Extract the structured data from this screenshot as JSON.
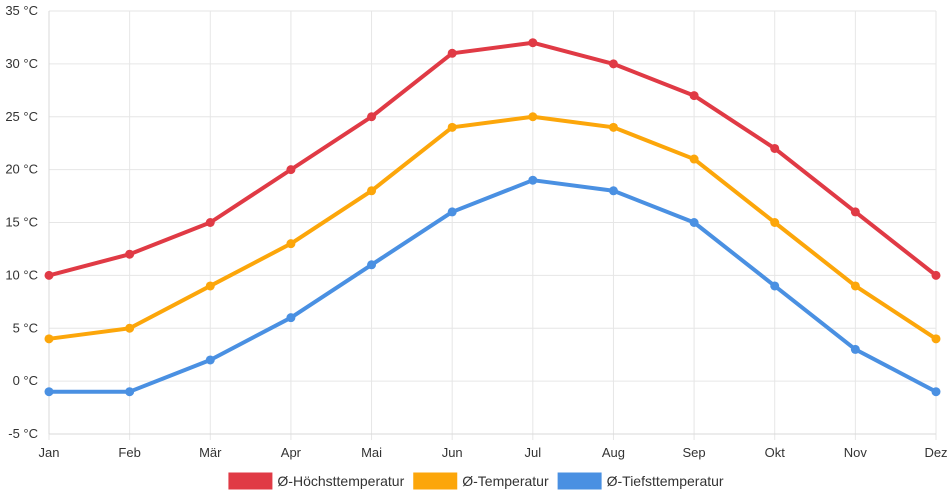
{
  "chart_data": {
    "type": "line",
    "title": "",
    "xlabel": "",
    "ylabel": "",
    "categories": [
      "Jan",
      "Feb",
      "Mär",
      "Apr",
      "Mai",
      "Jun",
      "Jul",
      "Aug",
      "Sep",
      "Okt",
      "Nov",
      "Dez"
    ],
    "ylim": [
      -5,
      35
    ],
    "yticks": [
      -5,
      0,
      5,
      10,
      15,
      20,
      25,
      30,
      35
    ],
    "ytick_labels": [
      "-5 °C",
      "0 °C",
      "5 °C",
      "10 °C",
      "15 °C",
      "20 °C",
      "25 °C",
      "30 °C",
      "35 °C"
    ],
    "grid": true,
    "legend_position": "bottom",
    "series": [
      {
        "name": "Ø-Höchsttemperatur",
        "color": "#e03a45",
        "values": [
          10,
          12,
          15,
          20,
          25,
          31,
          32,
          30,
          27,
          22,
          16,
          10
        ]
      },
      {
        "name": "Ø-Temperatur",
        "color": "#fca60a",
        "values": [
          4,
          5,
          9,
          13,
          18,
          24,
          25,
          24,
          21,
          15,
          9,
          4
        ]
      },
      {
        "name": "Ø-Tiefsttemperatur",
        "color": "#4a90e2",
        "values": [
          -1,
          -1,
          2,
          6,
          11,
          16,
          19,
          18,
          15,
          9,
          3,
          -1
        ]
      }
    ]
  }
}
